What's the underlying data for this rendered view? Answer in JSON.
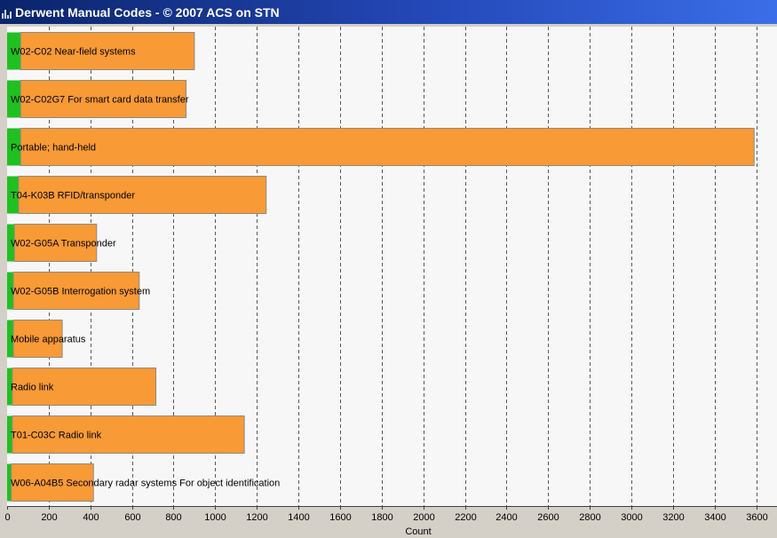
{
  "window": {
    "title": "Derwent Manual Codes - © 2007 ACS on STN",
    "icon": "bar-chart-icon"
  },
  "colors": {
    "bar_primary": "#f89a35",
    "bar_secondary": "#1fc020",
    "bar_outline": "#8a8a8a",
    "background": "#f7f7f7",
    "grid": "#5a5a5a",
    "frame": "#d4d0c8"
  },
  "chart_data": {
    "type": "bar",
    "orientation": "horizontal",
    "stacked": true,
    "categories": [
      "W02-C02 Near-field systems",
      "W02-C02G7 For smart card data transfer",
      "Portable; hand-held",
      "T04-K03B RFID/transponder",
      "W02-G05A Transponder",
      "W02-G05B Interrogation system",
      "Mobile apparatus",
      "Radio link",
      "T01-C03C Radio link",
      "W06-A04B5 Secondary radar systems For object identification"
    ],
    "series": [
      {
        "color": "#1fc020",
        "values": [
          65,
          65,
          65,
          55,
          35,
          30,
          30,
          25,
          25,
          20
        ]
      },
      {
        "color": "#f89a35",
        "values": [
          835,
          795,
          3525,
          1190,
          395,
          605,
          235,
          690,
          1115,
          395
        ]
      }
    ],
    "xlabel": "Count",
    "xlim": [
      0,
      3700
    ],
    "xticks": [
      0,
      200,
      400,
      600,
      800,
      1000,
      1200,
      1400,
      1600,
      1800,
      2000,
      2200,
      2400,
      2600,
      2800,
      3000,
      3200,
      3400,
      3600
    ],
    "grid": "vertical dashed"
  }
}
